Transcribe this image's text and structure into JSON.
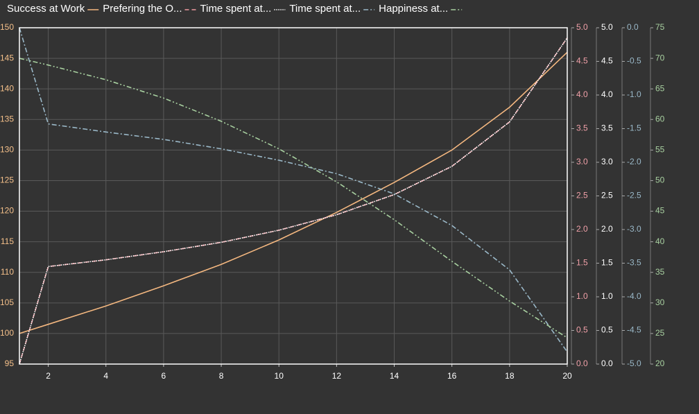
{
  "chart_data": {
    "type": "line",
    "x": [
      1,
      2,
      4,
      6,
      8,
      10,
      12,
      14,
      16,
      18,
      20
    ],
    "xlim": [
      1,
      20
    ],
    "xticks": [
      2,
      4,
      6,
      8,
      10,
      12,
      14,
      16,
      18,
      20
    ],
    "ylim": [
      95,
      150
    ],
    "yticks": [
      95,
      100,
      105,
      110,
      115,
      120,
      125,
      130,
      135,
      140,
      145,
      150
    ],
    "y_color": "#f5c08a",
    "y2lim": [
      0,
      5
    ],
    "y2ticks": [
      {
        "value": 0,
        "label": "0.0"
      },
      0.5,
      {
        "value": 1,
        "label": "1.0"
      },
      1.5,
      {
        "value": 2,
        "label": "2.0"
      },
      2.5,
      {
        "value": 3,
        "label": "3.0"
      },
      3.5,
      {
        "value": 4,
        "label": "4.0"
      },
      4.5,
      {
        "value": 5,
        "label": "5.0"
      }
    ],
    "y2_color": "#f0a0a8",
    "y3lim": [
      0,
      5
    ],
    "y3ticks": [
      {
        "value": 0,
        "label": "0.0"
      },
      0.5,
      {
        "value": 1,
        "label": "1.0"
      },
      1.5,
      {
        "value": 2,
        "label": "2.0"
      },
      2.5,
      {
        "value": 3,
        "label": "3.0"
      },
      3.5,
      {
        "value": 4,
        "label": "4.0"
      },
      4.5,
      {
        "value": 5,
        "label": "5.0"
      }
    ],
    "y3_color": "#ffffff",
    "y4lim": [
      -5,
      0
    ],
    "y4ticks": [
      {
        "value": -5,
        "label": "-5.0"
      },
      -4.5,
      {
        "value": -4,
        "label": "-4.0"
      },
      -3.5,
      {
        "value": -3,
        "label": "-3.0"
      },
      -2.5,
      {
        "value": -2,
        "label": "-2.0"
      },
      -1.5,
      {
        "value": -1,
        "label": "-1.0"
      },
      -0.5,
      {
        "value": 0,
        "label": "0.0"
      }
    ],
    "y4_color": "#9ab8c8",
    "y5lim": [
      20,
      75
    ],
    "y5ticks": [
      20,
      25,
      30,
      35,
      40,
      45,
      50,
      55,
      60,
      65,
      70,
      75
    ],
    "y5_color": "#a8d0a0",
    "grid": true,
    "series": [
      {
        "name": "Success at Work",
        "color": "#f5b880",
        "line_style": "solid",
        "axis": "y",
        "values": [
          100,
          101.5,
          104.5,
          107.8,
          111.3,
          115.3,
          119.8,
          124.7,
          130,
          137,
          146
        ]
      },
      {
        "name": "Prefering the O...",
        "color": "#f09aa0",
        "line_style": "dashed",
        "axis": "y2",
        "values": [
          0,
          1.45,
          1.55,
          1.67,
          1.81,
          1.99,
          2.22,
          2.52,
          2.94,
          3.6,
          4.85
        ]
      },
      {
        "name": "Time spent at...",
        "color": "#ffffff",
        "line_style": "dotted",
        "axis": "y3",
        "values": [
          0,
          1.45,
          1.55,
          1.67,
          1.81,
          1.99,
          2.22,
          2.52,
          2.94,
          3.6,
          4.85
        ]
      },
      {
        "name": "Time spent at...",
        "color": "#9ab8c8",
        "line_style": "dashdot",
        "axis": "y4",
        "values": [
          0,
          -1.43,
          -1.55,
          -1.66,
          -1.8,
          -1.97,
          -2.17,
          -2.47,
          -2.94,
          -3.6,
          -4.82
        ]
      },
      {
        "name": "Happiness at...",
        "color": "#a8d0a0",
        "line_style": "dashdotdot",
        "axis": "y5",
        "values": [
          70,
          68.9,
          66.5,
          63.5,
          59.7,
          55.2,
          49.8,
          43.6,
          36.8,
          30.3,
          24.3
        ]
      }
    ]
  }
}
